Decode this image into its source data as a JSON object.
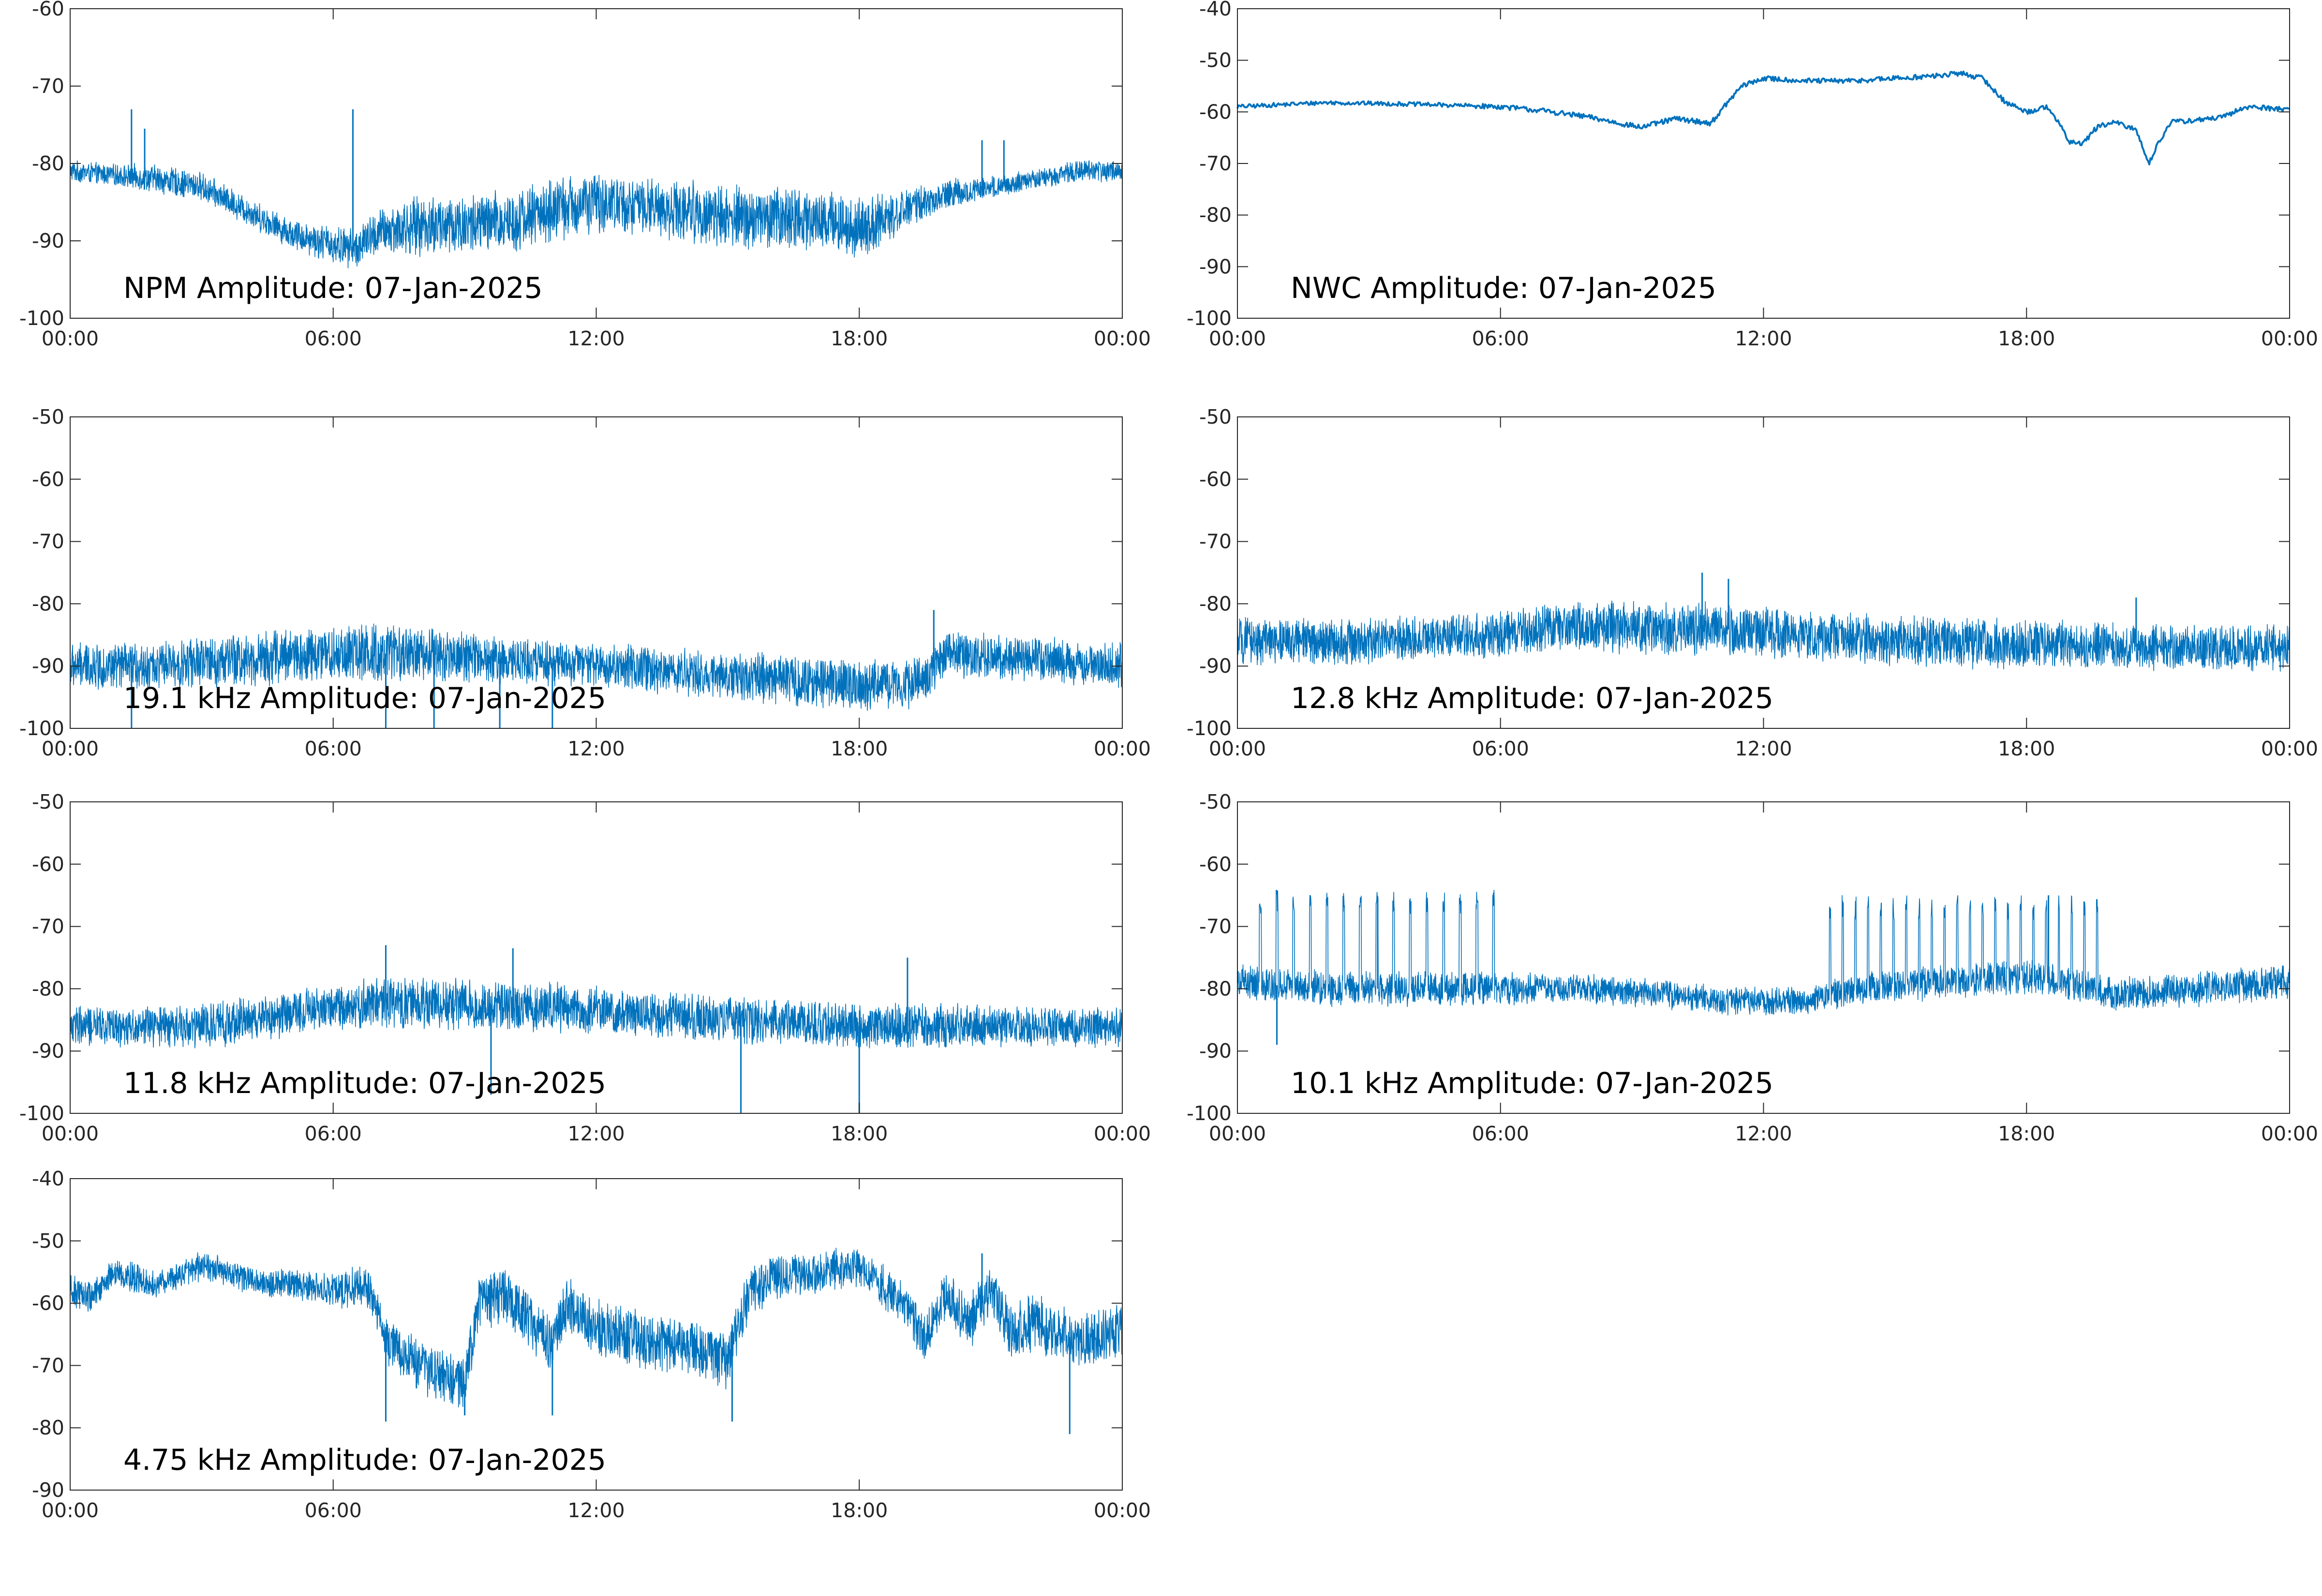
{
  "figure": {
    "colors": {
      "trace": "#0072bd",
      "axes": "#262626",
      "background": "#ffffff"
    }
  },
  "chart_data": [
    {
      "type": "line",
      "title": "NPM Amplitude: 07-Jan-2025",
      "xlabel": "",
      "ylabel": "",
      "x_unit": "hour",
      "xlim": [
        0,
        24
      ],
      "x_ticks": [
        0,
        6,
        12,
        18,
        24
      ],
      "x_tick_labels": [
        "00:00",
        "06:00",
        "12:00",
        "18:00",
        "00:00"
      ],
      "ylim": [
        -100,
        -60
      ],
      "y_ticks": [
        -60,
        -70,
        -80,
        -90,
        -100
      ],
      "y_tick_labels": [
        "-60",
        "-70",
        "-80",
        "-90",
        "-100"
      ],
      "grid": false,
      "series": [
        {
          "trend": {
            "x": [
              0,
              1,
              2,
              3,
              4,
              5,
              6,
              6.5,
              7,
              8,
              9,
              10,
              11,
              12,
              13,
              14,
              15,
              16,
              17,
              18,
              19,
              20,
              21,
              22,
              23,
              24
            ],
            "y": [
              -81,
              -81.5,
              -82,
              -83,
              -86,
              -89,
              -90.5,
              -91,
              -89,
              -88,
              -88,
              -87.5,
              -86,
              -85,
              -85.5,
              -86,
              -87,
              -87,
              -87,
              -88.5,
              -86,
              -84,
              -83,
              -82,
              -81,
              -81
            ]
          },
          "noise": [
            1.5,
            1.5,
            2,
            2,
            2,
            2,
            2.5,
            3,
            4,
            4.5,
            4.5,
            4.5,
            4.5,
            4,
            4,
            4.5,
            4.5,
            4.5,
            4.5,
            4,
            2.5,
            2,
            1.5,
            1.5,
            1.5,
            1.5
          ],
          "spikes": [
            {
              "x": 1.4,
              "y": -73
            },
            {
              "x": 1.7,
              "y": -75.5
            },
            {
              "x": 6.45,
              "y": -73
            },
            {
              "x": 20.8,
              "y": -77
            },
            {
              "x": 21.3,
              "y": -77
            }
          ]
        }
      ]
    },
    {
      "type": "line",
      "title": "NWC Amplitude: 07-Jan-2025",
      "xlabel": "",
      "ylabel": "",
      "x_unit": "hour",
      "xlim": [
        0,
        24
      ],
      "x_ticks": [
        0,
        6,
        12,
        18,
        24
      ],
      "x_tick_labels": [
        "00:00",
        "06:00",
        "12:00",
        "18:00",
        "00:00"
      ],
      "ylim": [
        -100,
        -40
      ],
      "y_ticks": [
        -40,
        -50,
        -60,
        -70,
        -80,
        -90,
        -100
      ],
      "y_tick_labels": [
        "-40",
        "-50",
        "-60",
        "-70",
        "-80",
        "-90",
        "-100"
      ],
      "grid": false,
      "series": [
        {
          "trend": {
            "x": [
              0,
              2,
              4,
              6,
              7,
              8,
              9.2,
              10,
              10.8,
              11.2,
              11.5,
              12,
              13,
              14,
              15,
              16,
              16.5,
              17,
              17.5,
              18,
              18.5,
              19,
              19.3,
              19.6,
              20,
              20.5,
              20.8,
              21,
              21.3,
              22,
              22.5,
              23,
              24
            ],
            "y": [
              -59,
              -58.2,
              -58.5,
              -59,
              -59.8,
              -61,
              -63,
              -61.3,
              -62.2,
              -58,
              -55,
              -53.5,
              -54,
              -54,
              -53.5,
              -53,
              -52.5,
              -53.5,
              -58,
              -60,
              -59,
              -66,
              -66,
              -63,
              -62,
              -63.5,
              -70,
              -66,
              -62,
              -61.5,
              -61,
              -59,
              -59.5
            ]
          },
          "noise": [
            0.4,
            0.4,
            0.4,
            0.4,
            0.4,
            0.4,
            0.5,
            0.5,
            0.5,
            0.5,
            0.5,
            0.5,
            0.5,
            0.5,
            0.5,
            0.5,
            0.5,
            0.5,
            0.5,
            0.5,
            0.5,
            0.5,
            0.5,
            0.5,
            0.5
          ]
        }
      ]
    },
    {
      "type": "line",
      "title": "19.1 kHz Amplitude: 07-Jan-2025",
      "xlabel": "",
      "ylabel": "",
      "x_unit": "hour",
      "xlim": [
        0,
        24
      ],
      "x_ticks": [
        0,
        6,
        12,
        18,
        24
      ],
      "x_tick_labels": [
        "00:00",
        "06:00",
        "12:00",
        "18:00",
        "00:00"
      ],
      "ylim": [
        -100,
        -50
      ],
      "y_ticks": [
        -50,
        -60,
        -70,
        -80,
        -90,
        -100
      ],
      "y_tick_labels": [
        "-50",
        "-60",
        "-70",
        "-80",
        "-90",
        "-100"
      ],
      "grid": false,
      "series": [
        {
          "trend": {
            "x": [
              0,
              2,
              4,
              6,
              8,
              10,
              12,
              14,
              16,
              18,
              19,
              19.5,
              20,
              22,
              24
            ],
            "y": [
              -90,
              -90,
              -89,
              -88,
              -88,
              -89,
              -90,
              -91,
              -92,
              -93,
              -93,
              -92,
              -88,
              -89,
              -90
            ]
          },
          "noise": [
            4,
            4,
            4,
            4.5,
            5,
            5,
            5,
            5,
            4.5,
            4.5,
            4,
            4,
            4,
            4,
            4,
            4,
            4.5,
            4.5,
            4.5,
            4.5,
            4,
            4,
            4,
            4,
            4
          ],
          "spikes": [
            {
              "x": 1.4,
              "y": -100
            },
            {
              "x": 7.2,
              "y": -100
            },
            {
              "x": 8.3,
              "y": -100
            },
            {
              "x": 9.8,
              "y": -100
            },
            {
              "x": 11.0,
              "y": -100
            },
            {
              "x": 19.7,
              "y": -81
            }
          ]
        }
      ]
    },
    {
      "type": "line",
      "title": "12.8 kHz Amplitude: 07-Jan-2025",
      "xlabel": "",
      "ylabel": "",
      "x_unit": "hour",
      "xlim": [
        0,
        24
      ],
      "x_ticks": [
        0,
        6,
        12,
        18,
        24
      ],
      "x_tick_labels": [
        "00:00",
        "06:00",
        "12:00",
        "18:00",
        "00:00"
      ],
      "ylim": [
        -100,
        -50
      ],
      "y_ticks": [
        -50,
        -60,
        -70,
        -80,
        -90,
        -100
      ],
      "y_tick_labels": [
        "-50",
        "-60",
        "-70",
        "-80",
        "-90",
        "-100"
      ],
      "grid": false,
      "series": [
        {
          "trend": {
            "x": [
              0,
              3,
              6,
              7.5,
              9,
              11,
              13,
              15,
              18,
              21,
              24
            ],
            "y": [
              -86,
              -86,
              -85,
              -83.5,
              -84,
              -84,
              -85,
              -86,
              -86.5,
              -87,
              -87
            ]
          },
          "noise": [
            4,
            4,
            4,
            4,
            4,
            4,
            4,
            4,
            4.5,
            4.5,
            4.5,
            4.5,
            4.5,
            4.5,
            4.5,
            4.5,
            4.5,
            4.5,
            4.5,
            4,
            4,
            4,
            4,
            4,
            4
          ],
          "spikes": [
            {
              "x": 10.6,
              "y": -75
            },
            {
              "x": 11.2,
              "y": -76
            },
            {
              "x": 20.5,
              "y": -79
            }
          ]
        }
      ]
    },
    {
      "type": "line",
      "title": "11.8 kHz Amplitude: 07-Jan-2025",
      "xlabel": "",
      "ylabel": "",
      "x_unit": "hour",
      "xlim": [
        0,
        24
      ],
      "x_ticks": [
        0,
        6,
        12,
        18,
        24
      ],
      "x_tick_labels": [
        "00:00",
        "06:00",
        "12:00",
        "18:00",
        "00:00"
      ],
      "ylim": [
        -100,
        -50
      ],
      "y_ticks": [
        -50,
        -60,
        -70,
        -80,
        -90,
        -100
      ],
      "y_tick_labels": [
        "-50",
        "-60",
        "-70",
        "-80",
        "-90",
        "-100"
      ],
      "grid": false,
      "series": [
        {
          "trend": {
            "x": [
              0,
              3,
              6,
              7,
              9,
              11,
              13,
              15,
              18,
              21,
              24
            ],
            "y": [
              -86,
              -86,
              -83,
              -82,
              -82.5,
              -83,
              -84,
              -85,
              -86,
              -86,
              -86
            ]
          },
          "noise": [
            3.5,
            3.5,
            3.5,
            4,
            4,
            4,
            4,
            4.5,
            4.5,
            4.5,
            4.5,
            4.5,
            4,
            4,
            4,
            4,
            4,
            4,
            4,
            4,
            4,
            3.5,
            3.5,
            3.5,
            3.5
          ],
          "spikes": [
            {
              "x": 7.2,
              "y": -73
            },
            {
              "x": 10.1,
              "y": -73.5
            },
            {
              "x": 15.3,
              "y": -100
            },
            {
              "x": 18.0,
              "y": -100
            },
            {
              "x": 19.1,
              "y": -75
            },
            {
              "x": 9.6,
              "y": -97
            }
          ]
        }
      ]
    },
    {
      "type": "line",
      "title": "10.1 kHz Amplitude: 07-Jan-2025",
      "xlabel": "",
      "ylabel": "",
      "x_unit": "hour",
      "xlim": [
        0,
        24
      ],
      "x_ticks": [
        0,
        6,
        12,
        18,
        24
      ],
      "x_tick_labels": [
        "00:00",
        "06:00",
        "12:00",
        "18:00",
        "00:00"
      ],
      "ylim": [
        -100,
        -50
      ],
      "y_ticks": [
        -50,
        -60,
        -70,
        -80,
        -90,
        -100
      ],
      "y_tick_labels": [
        "-50",
        "-60",
        "-70",
        "-80",
        "-90",
        "-100"
      ],
      "grid": false,
      "series": [
        {
          "trend": {
            "x": [
              0,
              2,
              4,
              6,
              8,
              10,
              11,
              12,
              13,
              13.5,
              14,
              16,
              18,
              19,
              20,
              22,
              24
            ],
            "y": [
              -79,
              -80,
              -80,
              -80,
              -80,
              -81,
              -82,
              -82,
              -82,
              -81,
              -80,
              -79,
              -78,
              -79,
              -81,
              -80,
              -79
            ]
          },
          "noise": [
            3,
            3,
            3,
            3,
            3,
            3,
            3,
            2.5,
            2.5,
            2.5,
            2.5,
            2.5,
            2.5,
            2.5,
            3,
            3,
            3,
            3,
            3,
            3,
            3,
            3,
            3,
            3,
            3
          ],
          "bursts": [
            {
              "from": 0.5,
              "to": 6.0,
              "period": 0.38,
              "peak": -68
            },
            {
              "from": 13.5,
              "to": 19.8,
              "period": 0.29,
              "peak": -69
            }
          ],
          "spikes": [
            {
              "x": 0.9,
              "y": -89
            },
            {
              "x": 3.2,
              "y": -65.5
            },
            {
              "x": 18.5,
              "y": -65
            }
          ]
        }
      ]
    },
    {
      "type": "line",
      "title": "4.75 kHz Amplitude: 07-Jan-2025",
      "xlabel": "",
      "ylabel": "",
      "x_unit": "hour",
      "xlim": [
        0,
        24
      ],
      "x_ticks": [
        0,
        6,
        12,
        18,
        24
      ],
      "x_tick_labels": [
        "00:00",
        "06:00",
        "12:00",
        "18:00",
        "00:00"
      ],
      "ylim": [
        -90,
        -40
      ],
      "y_ticks": [
        -40,
        -50,
        -60,
        -70,
        -80,
        -90
      ],
      "y_tick_labels": [
        "-40",
        "-50",
        "-60",
        "-70",
        "-80",
        "-90"
      ],
      "grid": false,
      "series": [
        {
          "trend": {
            "x": [
              0,
              0.5,
              1,
              2,
              3,
              4,
              5,
              6,
              6.8,
              7.2,
              8,
              9,
              9.3,
              10,
              11,
              11.3,
              12,
              13,
              14,
              15,
              15.5,
              16,
              17,
              18,
              19,
              19.5,
              20,
              20.5,
              21,
              21.5,
              22,
              23,
              24
            ],
            "y": [
              -58,
              -59,
              -55,
              -57,
              -54,
              -56,
              -57,
              -58,
              -57,
              -66,
              -70,
              -73,
              -60,
              -59,
              -67,
              -60,
              -64,
              -66,
              -67,
              -69,
              -58,
              -56,
              -55,
              -54,
              -60,
              -66,
              -58,
              -63,
              -58,
              -65,
              -63,
              -66,
              -64
            ]
          },
          "noise": [
            3,
            2.5,
            2.5,
            2.5,
            2.5,
            2.5,
            3,
            4,
            5,
            5,
            5,
            5,
            5,
            5,
            5,
            5,
            4,
            3.5,
            3.5,
            4,
            4.5,
            5,
            5,
            5,
            5
          ],
          "spikes": [
            {
              "x": 7.2,
              "y": -79
            },
            {
              "x": 9.0,
              "y": -78
            },
            {
              "x": 11.0,
              "y": -78
            },
            {
              "x": 15.1,
              "y": -79
            },
            {
              "x": 22.8,
              "y": -81
            },
            {
              "x": 20.8,
              "y": -52
            }
          ]
        }
      ]
    }
  ]
}
